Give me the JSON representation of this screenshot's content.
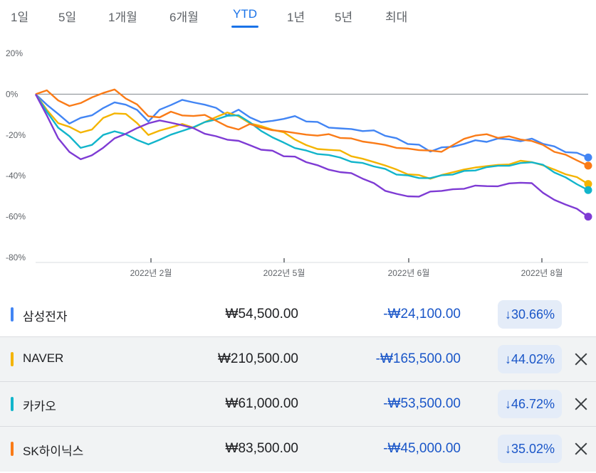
{
  "tabs": [
    {
      "label": "1일",
      "active": false
    },
    {
      "label": "5일",
      "active": false
    },
    {
      "label": "1개월",
      "active": false
    },
    {
      "label": "6개월",
      "active": false
    },
    {
      "label": "YTD",
      "active": true
    },
    {
      "label": "1년",
      "active": false
    },
    {
      "label": "5년",
      "active": false
    },
    {
      "label": "최대",
      "active": false
    }
  ],
  "chart_data": {
    "type": "line",
    "y_ticks": [
      "20%",
      "0%",
      "-20%",
      "-40%",
      "-60%",
      "-80%"
    ],
    "ylim": [
      -80,
      20
    ],
    "y_unit": "%",
    "x_ticks": [
      "2022년 2월",
      "2022년 5월",
      "2022년 6월",
      "2022년 8월"
    ],
    "grid": "zero line only",
    "series": [
      {
        "name": "삼성전자",
        "color": "#4285f4",
        "values": [
          0,
          -5,
          -10,
          -14,
          -12,
          -10,
          -7,
          -4,
          -5,
          -8,
          -13,
          -8,
          -5,
          -3,
          -4,
          -5,
          -7,
          -10,
          -8,
          -11,
          -14,
          -13,
          -12,
          -11,
          -13,
          -14,
          -16,
          -17,
          -17,
          -18,
          -18,
          -20,
          -22,
          -24,
          -25,
          -28,
          -26,
          -26,
          -24,
          -23,
          -23,
          -22,
          -22,
          -23,
          -22,
          -24,
          -26,
          -28,
          -29,
          -31
        ]
      },
      {
        "name": "NAVER",
        "color": "#f4b400",
        "values": [
          0,
          -8,
          -14,
          -16,
          -19,
          -17,
          -12,
          -9,
          -10,
          -14,
          -20,
          -18,
          -16,
          -15,
          -16,
          -14,
          -11,
          -9,
          -11,
          -14,
          -16,
          -17,
          -19,
          -22,
          -25,
          -27,
          -27,
          -28,
          -30,
          -32,
          -33,
          -35,
          -37,
          -39,
          -40,
          -41,
          -40,
          -38,
          -37,
          -36,
          -35,
          -35,
          -34,
          -33,
          -33,
          -35,
          -37,
          -39,
          -41,
          -44
        ]
      },
      {
        "name": "카카오",
        "color": "#12b5cb",
        "values": [
          0,
          -9,
          -16,
          -21,
          -26,
          -25,
          -20,
          -18,
          -20,
          -22,
          -25,
          -22,
          -20,
          -18,
          -16,
          -14,
          -12,
          -11,
          -10,
          -14,
          -18,
          -21,
          -24,
          -26,
          -28,
          -29,
          -30,
          -31,
          -33,
          -34,
          -35,
          -37,
          -39,
          -40,
          -41,
          -41,
          -40,
          -39,
          -38,
          -37,
          -36,
          -35,
          -35,
          -34,
          -33,
          -35,
          -38,
          -41,
          -44,
          -47
        ]
      },
      {
        "name": "SK하이닉스",
        "color": "#fa7b17",
        "values": [
          0,
          2,
          -3,
          -6,
          -4,
          -2,
          1,
          2,
          -2,
          -5,
          -11,
          -11,
          -9,
          -10,
          -11,
          -10,
          -13,
          -16,
          -17,
          -15,
          -16,
          -18,
          -18,
          -19,
          -20,
          -20,
          -20,
          -21,
          -22,
          -23,
          -24,
          -25,
          -26,
          -27,
          -27,
          -28,
          -28,
          -25,
          -22,
          -20,
          -20,
          -21,
          -21,
          -22,
          -23,
          -25,
          -28,
          -30,
          -32,
          -35
        ]
      },
      {
        "name": "",
        "color": "#7e3bd4",
        "values": [
          0,
          -10,
          -22,
          -28,
          -32,
          -30,
          -26,
          -22,
          -19,
          -17,
          -14,
          -13,
          -14,
          -15,
          -17,
          -19,
          -21,
          -22,
          -23,
          -25,
          -27,
          -28,
          -30,
          -31,
          -33,
          -35,
          -37,
          -38,
          -39,
          -41,
          -44,
          -47,
          -49,
          -50,
          -50,
          -48,
          -47,
          -47,
          -46,
          -45,
          -45,
          -45,
          -44,
          -43,
          -44,
          -48,
          -52,
          -54,
          -56,
          -60
        ]
      }
    ]
  },
  "rows": [
    {
      "name": "삼성전자",
      "color": "#4285f4",
      "price": "₩54,500.00",
      "change": "-₩24,100.00",
      "pct": "↓30.66%",
      "removable": false
    },
    {
      "name": "NAVER",
      "color": "#f4b400",
      "price": "₩210,500.00",
      "change": "-₩165,500.00",
      "pct": "↓44.02%",
      "removable": true
    },
    {
      "name": "카카오",
      "color": "#12b5cb",
      "price": "₩61,000.00",
      "change": "-₩53,500.00",
      "pct": "↓46.72%",
      "removable": true
    },
    {
      "name": "SK하이닉스",
      "color": "#fa7b17",
      "price": "₩83,500.00",
      "change": "-₩45,000.00",
      "pct": "↓35.02%",
      "removable": true
    }
  ]
}
